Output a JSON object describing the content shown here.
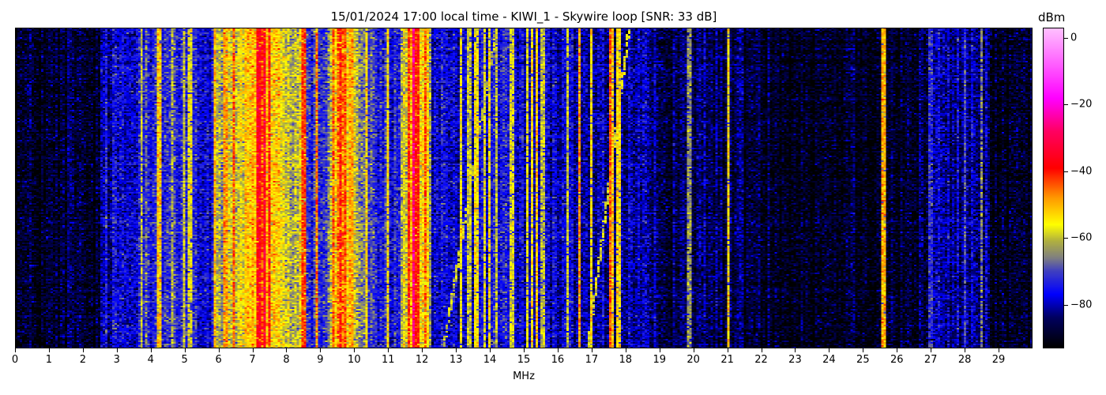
{
  "chart_data": {
    "type": "heatmap",
    "title": "15/01/2024 17:00 local time - KIWI_1 - Skywire loop [SNR: 33 dB]",
    "xlabel": "MHz",
    "ylabel": "",
    "xlim": [
      0,
      30
    ],
    "x_ticks": [
      0,
      1,
      2,
      3,
      4,
      5,
      6,
      7,
      8,
      9,
      10,
      11,
      12,
      13,
      14,
      15,
      16,
      17,
      18,
      19,
      20,
      21,
      22,
      23,
      24,
      25,
      26,
      27,
      28,
      29
    ],
    "colorbar": {
      "label": "dBm",
      "range": [
        -93,
        3
      ],
      "ticks": [
        0,
        -20,
        -40,
        -60,
        -80
      ],
      "stops": [
        [
          -93,
          "#000000"
        ],
        [
          -84,
          "#000060"
        ],
        [
          -77,
          "#0000ff"
        ],
        [
          -70,
          "#4040c0"
        ],
        [
          -66,
          "#808080"
        ],
        [
          -61,
          "#b0b040"
        ],
        [
          -56,
          "#ffff00"
        ],
        [
          -48,
          "#ff9900"
        ],
        [
          -39,
          "#ff0000"
        ],
        [
          -28,
          "#ff0060"
        ],
        [
          -18,
          "#ff00ff"
        ],
        [
          3,
          "#ffc0ff"
        ]
      ]
    },
    "background_profile_dbm": [
      [
        0,
        -90
      ],
      [
        2.5,
        -90
      ],
      [
        2.55,
        -80
      ],
      [
        3.6,
        -78
      ],
      [
        3.7,
        -70
      ],
      [
        4.5,
        -72
      ],
      [
        5.3,
        -77
      ],
      [
        5.8,
        -78
      ],
      [
        5.9,
        -60
      ],
      [
        6.3,
        -61
      ],
      [
        7.0,
        -52
      ],
      [
        7.3,
        -45
      ],
      [
        7.6,
        -52
      ],
      [
        8.0,
        -62
      ],
      [
        8.4,
        -58
      ],
      [
        8.6,
        -72
      ],
      [
        9.2,
        -72
      ],
      [
        9.4,
        -52
      ],
      [
        9.7,
        -48
      ],
      [
        10.0,
        -58
      ],
      [
        10.4,
        -72
      ],
      [
        11.3,
        -76
      ],
      [
        11.5,
        -55
      ],
      [
        11.9,
        -50
      ],
      [
        12.2,
        -60
      ],
      [
        12.3,
        -80
      ],
      [
        13.5,
        -78
      ],
      [
        14.2,
        -76
      ],
      [
        15.0,
        -78
      ],
      [
        16.0,
        -80
      ],
      [
        18.2,
        -82
      ],
      [
        19.0,
        -85
      ],
      [
        21.0,
        -86
      ],
      [
        22.0,
        -87
      ],
      [
        23.0,
        -90
      ],
      [
        25.0,
        -89
      ],
      [
        26.8,
        -89
      ],
      [
        27.0,
        -82
      ],
      [
        28.6,
        -82
      ],
      [
        28.8,
        -90
      ],
      [
        30.0,
        -90
      ]
    ],
    "carriers_mhz_dbm": [
      [
        1.6,
        -84
      ],
      [
        3.75,
        -60
      ],
      [
        4.25,
        -52
      ],
      [
        4.65,
        -62
      ],
      [
        5.0,
        -60
      ],
      [
        5.15,
        -57
      ],
      [
        5.9,
        -50
      ],
      [
        6.2,
        -48
      ],
      [
        6.45,
        -44
      ],
      [
        6.8,
        -52
      ],
      [
        7.2,
        -36
      ],
      [
        7.35,
        -34
      ],
      [
        7.5,
        -40
      ],
      [
        8.5,
        -42
      ],
      [
        8.9,
        -46
      ],
      [
        9.4,
        -44
      ],
      [
        9.6,
        -40
      ],
      [
        9.75,
        -44
      ],
      [
        9.9,
        -50
      ],
      [
        10.35,
        -54
      ],
      [
        11.0,
        -54
      ],
      [
        11.6,
        -42
      ],
      [
        11.75,
        -26
      ],
      [
        11.85,
        -40
      ],
      [
        12.1,
        -44
      ],
      [
        13.15,
        -56
      ],
      [
        13.4,
        -60
      ],
      [
        13.6,
        -55
      ],
      [
        13.85,
        -58
      ],
      [
        14.0,
        -54
      ],
      [
        14.2,
        -60
      ],
      [
        14.65,
        -58
      ],
      [
        15.1,
        -57
      ],
      [
        15.25,
        -54
      ],
      [
        15.4,
        -52
      ],
      [
        15.55,
        -60
      ],
      [
        16.3,
        -60
      ],
      [
        16.65,
        -48
      ],
      [
        17.0,
        -54
      ],
      [
        17.55,
        -44
      ],
      [
        17.62,
        -52
      ],
      [
        17.8,
        -54
      ],
      [
        19.9,
        -64
      ],
      [
        21.05,
        -54
      ],
      [
        25.6,
        -50
      ],
      [
        27.0,
        -72
      ],
      [
        28.0,
        -70
      ],
      [
        28.5,
        -66
      ]
    ],
    "sweeps_mhz": [
      {
        "start": 12.65,
        "end": 14.2,
        "dbm": -60
      },
      {
        "start": 16.9,
        "end": 18.1,
        "dbm": -58
      }
    ]
  }
}
